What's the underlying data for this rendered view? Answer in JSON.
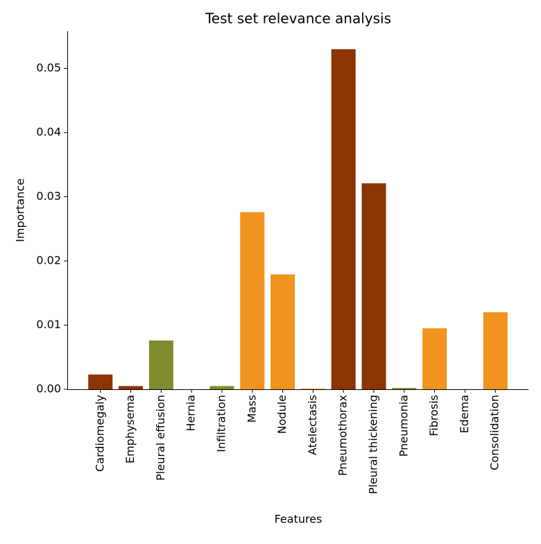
{
  "chart_data": {
    "type": "bar",
    "title": "Test set relevance analysis",
    "x_label": "Features",
    "y_label": "Importance",
    "categories": [
      "Cardiomegaly",
      "Emphysema",
      "Pleural effusion",
      "Hernia",
      "Infiltration",
      "Mass",
      "Nodule",
      "Atelectasis",
      "Pneumothorax",
      "Pleural thickening",
      "Pneumonia",
      "Fibrosis",
      "Edema",
      "Consolidation"
    ],
    "values": [
      0.0023,
      0.0005,
      0.0076,
      0,
      0.0005,
      0.0276,
      0.0179,
      0.0001,
      0.053,
      0.0321,
      0.0002,
      0.0095,
      0,
      0.012
    ],
    "colors": [
      "#8b3503",
      "#8b3503",
      "#7f8b2e",
      "#8b3503",
      "#7f8b2e",
      "#f0931f",
      "#f0931f",
      "#f0931f",
      "#8b3503",
      "#8b3503",
      "#7f8b2e",
      "#f0931f",
      "#f0931f",
      "#f0931f"
    ],
    "ylim": [
      0,
      0.0558
    ],
    "yticks": [
      {
        "value": 0,
        "label": "0.00"
      },
      {
        "value": 0.01,
        "label": "0.01"
      },
      {
        "value": 0.02,
        "label": "0.02"
      },
      {
        "value": 0.03,
        "label": "0.03"
      },
      {
        "value": 0.04,
        "label": "0.04"
      },
      {
        "value": 0.05,
        "label": "0.05"
      }
    ],
    "grid": false
  }
}
